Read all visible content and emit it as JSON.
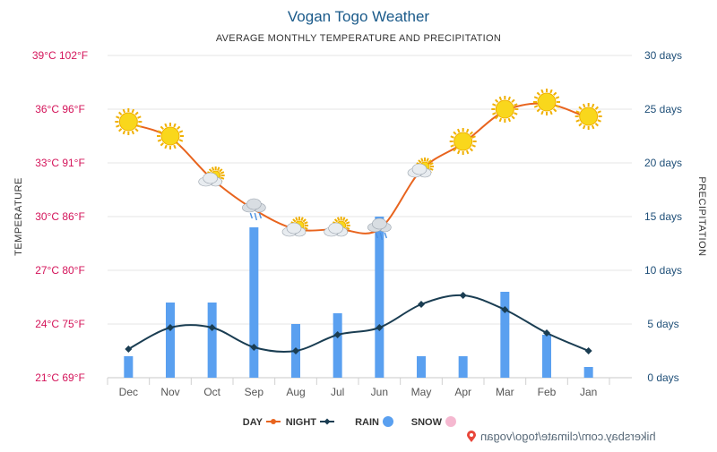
{
  "title": "Vogan Togo Weather",
  "subtitle": "AVERAGE MONTHLY TEMPERATURE AND PRECIPITATION",
  "credit": "hikersbay.com/climate/togo/vogan",
  "colors": {
    "day": "#e8641e",
    "night": "#1a3d52",
    "rain": "#5aa0f0",
    "snow": "#f5b8d0",
    "left_axis": "#1f4f78",
    "right_axis": "#d4145a",
    "sun": "#f9d71c"
  },
  "legend": [
    {
      "key": "day",
      "label": "DAY"
    },
    {
      "key": "night",
      "label": "NIGHT"
    },
    {
      "key": "rain",
      "label": "RAIN"
    },
    {
      "key": "snow",
      "label": "SNOW"
    }
  ],
  "chart_data": {
    "type": "line",
    "title": "Vogan Togo Weather",
    "subtitle": "AVERAGE MONTHLY TEMPERATURE AND PRECIPITATION",
    "categories": [
      "Jan",
      "Feb",
      "Mar",
      "Apr",
      "May",
      "Jun",
      "Jul",
      "Aug",
      "Sep",
      "Oct",
      "Nov",
      "Dec"
    ],
    "left_axis": {
      "label": "PRECIPITATION",
      "ylim": [
        0,
        30
      ],
      "ticks": [
        "0 days",
        "5 days",
        "10 days",
        "15 days",
        "20 days",
        "25 days",
        "30 days"
      ]
    },
    "right_axis": {
      "label": "TEMPERATURE",
      "ylim": [
        21,
        39
      ],
      "ticks": [
        "21°C 69°F",
        "24°C 75°F",
        "27°C 80°F",
        "30°C 86°F",
        "33°C 91°F",
        "36°C 96°F",
        "39°C 102°F"
      ]
    },
    "series": [
      {
        "name": "DAY",
        "kind": "line",
        "axis": "right",
        "values": [
          35.5,
          36.3,
          35.9,
          34.1,
          32.6,
          29.3,
          29.3,
          29.3,
          30.4,
          32.1,
          34.4,
          35.2
        ]
      },
      {
        "name": "NIGHT",
        "kind": "line",
        "axis": "right",
        "values": [
          22.5,
          23.5,
          24.8,
          25.6,
          25.1,
          23.8,
          23.4,
          22.5,
          22.7,
          23.8,
          23.8,
          22.6
        ]
      },
      {
        "name": "RAIN",
        "kind": "bar",
        "axis": "left",
        "values": [
          1,
          4,
          8,
          2,
          2,
          15,
          6,
          5,
          14,
          7,
          7,
          2
        ]
      },
      {
        "name": "SNOW",
        "kind": "bar",
        "axis": "left",
        "values": [
          0,
          0,
          0,
          0,
          0,
          0,
          0,
          0,
          0,
          0,
          0,
          0
        ]
      }
    ],
    "weather_icons": [
      "sun",
      "sun",
      "sun",
      "sun",
      "sun-cloud",
      "rain-cloud",
      "sun-cloud",
      "sun-cloud",
      "rain-cloud",
      "sun-cloud",
      "sun",
      "sun"
    ],
    "grid": true,
    "legend_position": "bottom"
  }
}
